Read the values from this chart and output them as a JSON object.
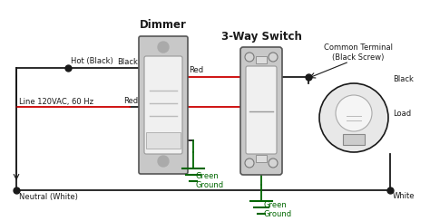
{
  "bg_color": "#ffffff",
  "wire_black": "#1a1a1a",
  "wire_red": "#cc0000",
  "wire_white": "#888888",
  "wire_green": "#006600",
  "dimmer_label": "Dimmer",
  "switch_label": "3-Way Switch",
  "common_label": "Common Terminal\n(Black Screw)",
  "hot_label": "Hot (Black)",
  "line_label": "Line 120VAC, 60 Hz",
  "neutral_label": "Neutral (White)",
  "black_label": "Black",
  "red_label_top": "Red",
  "red_label_bot": "Red",
  "green_gnd1": "Green\nGround",
  "green_gnd2": "Green\nGround",
  "load_label": "Load",
  "white_label": "White",
  "black_label2": "Black",
  "lw": 1.3
}
